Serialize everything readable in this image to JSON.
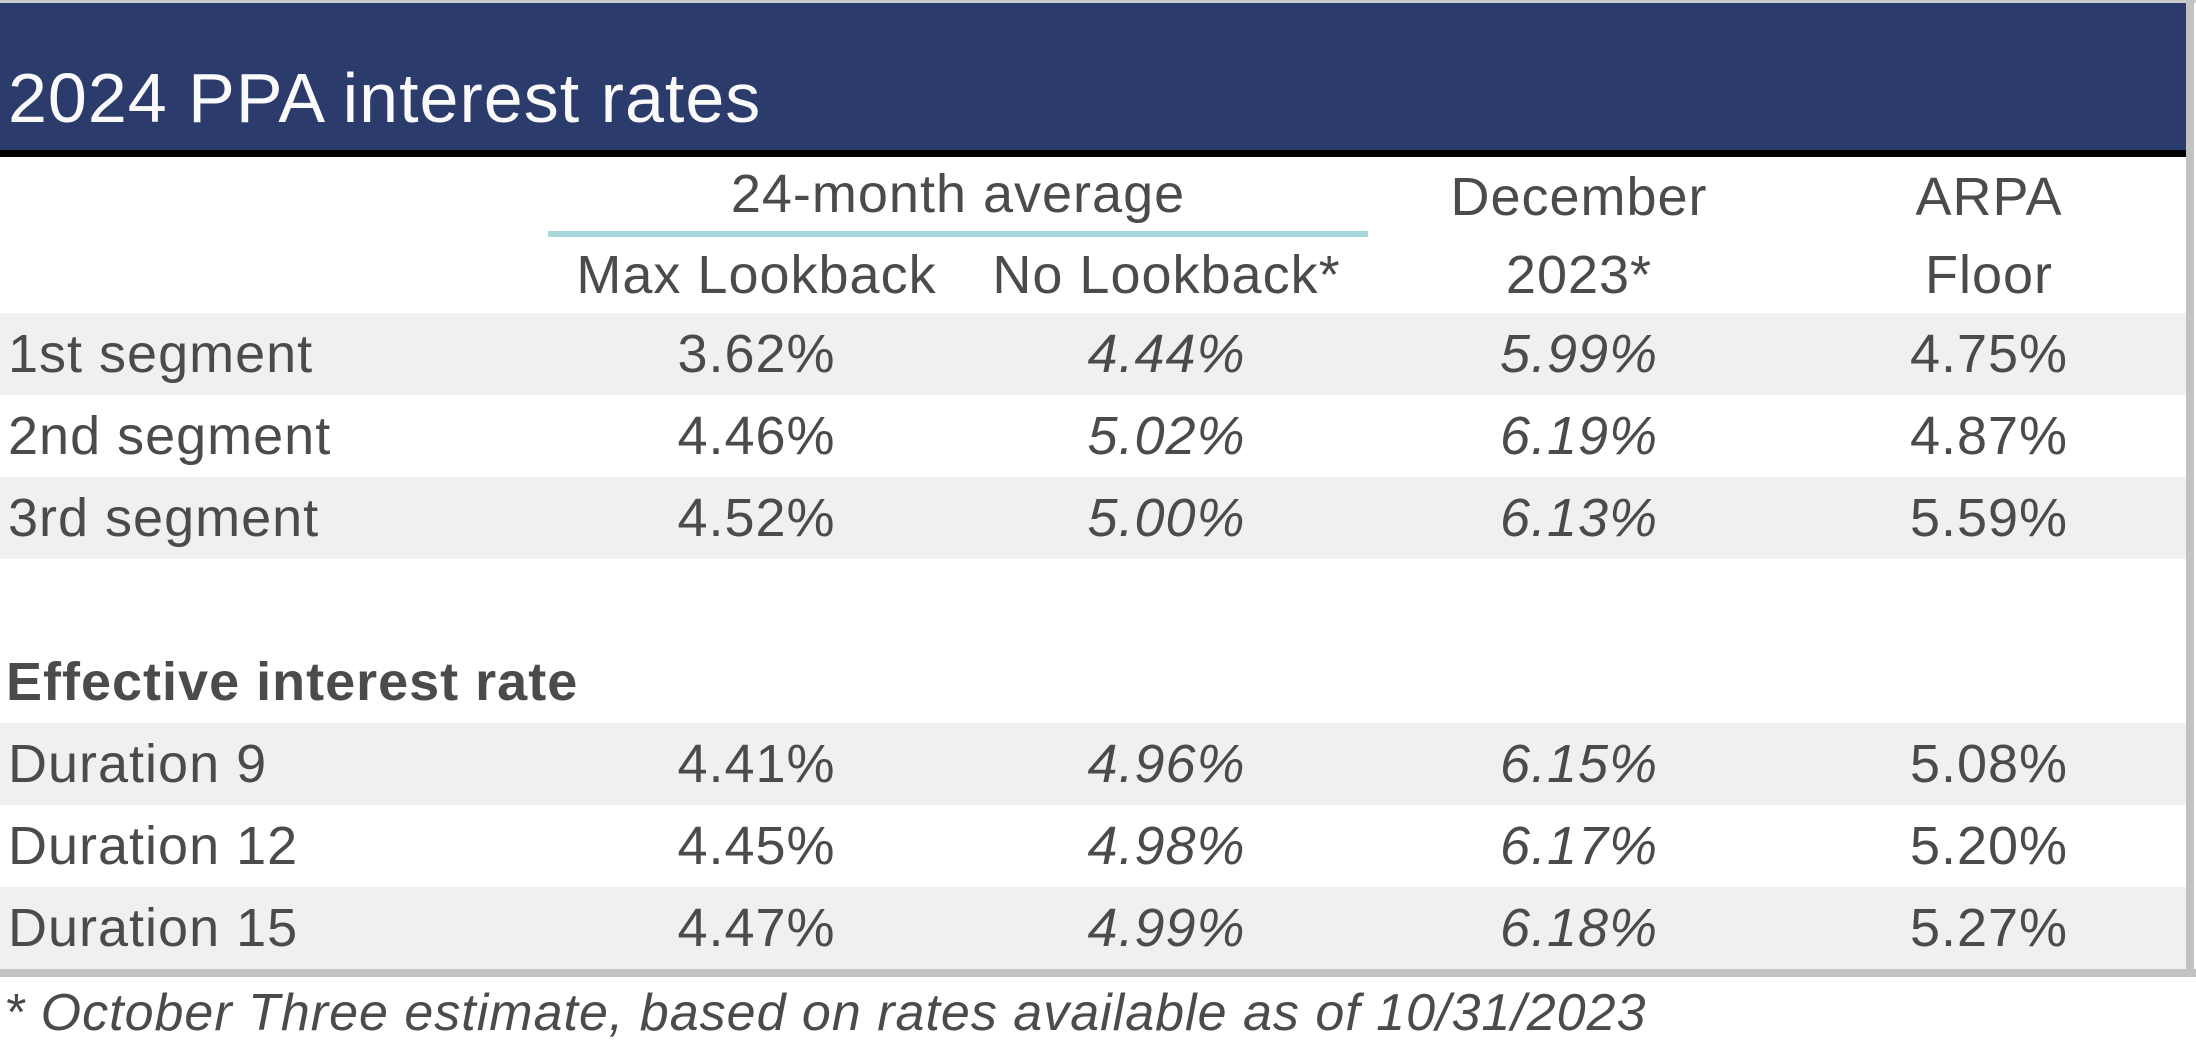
{
  "title": "2024 PPA interest rates",
  "table": {
    "header": {
      "group_label": "24-month average",
      "col_max_lookback": "Max Lookback",
      "col_no_lookback": "No Lookback*",
      "col_december_line1": "December",
      "col_december_line2": "2023*",
      "col_arpa_line1": "ARPA",
      "col_arpa_line2": "Floor"
    },
    "segment_rows": [
      {
        "label": "1st segment",
        "max_lookback": "3.62%",
        "no_lookback": "4.44%",
        "december_2023": "5.99%",
        "arpa_floor": "4.75%"
      },
      {
        "label": "2nd segment",
        "max_lookback": "4.46%",
        "no_lookback": "5.02%",
        "december_2023": "6.19%",
        "arpa_floor": "4.87%"
      },
      {
        "label": "3rd segment",
        "max_lookback": "4.52%",
        "no_lookback": "5.00%",
        "december_2023": "6.13%",
        "arpa_floor": "5.59%"
      }
    ],
    "section_heading": "Effective interest rate",
    "duration_rows": [
      {
        "label": "Duration 9",
        "max_lookback": "4.41%",
        "no_lookback": "4.96%",
        "december_2023": "6.15%",
        "arpa_floor": "5.08%"
      },
      {
        "label": "Duration 12",
        "max_lookback": "4.45%",
        "no_lookback": "4.98%",
        "december_2023": "6.17%",
        "arpa_floor": "5.20%"
      },
      {
        "label": "Duration 15",
        "max_lookback": "4.47%",
        "no_lookback": "4.99%",
        "december_2023": "6.18%",
        "arpa_floor": "5.27%"
      }
    ]
  },
  "footnote": "* October Three estimate, based on rates available as of 10/31/2023",
  "colors": {
    "header_navy": "#2B3B6C",
    "teal_underline": "#A9D8DC",
    "row_shade_gray": "#F0F0EF",
    "border_gray": "#C2C2C2",
    "text_gray": "#4B4B4B"
  },
  "chart_data": {
    "type": "table",
    "title": "2024 PPA interest rates",
    "columns": [
      "",
      "24-month average — Max Lookback",
      "24-month average — No Lookback*",
      "December 2023*",
      "ARPA Floor"
    ],
    "rows": [
      [
        "1st segment",
        3.62,
        4.44,
        5.99,
        4.75
      ],
      [
        "2nd segment",
        4.46,
        5.02,
        6.19,
        4.87
      ],
      [
        "3rd segment",
        4.52,
        5.0,
        6.13,
        5.59
      ],
      [
        "Effective interest rate",
        null,
        null,
        null,
        null
      ],
      [
        "Duration 9",
        4.41,
        4.96,
        6.15,
        5.08
      ],
      [
        "Duration 12",
        4.45,
        4.98,
        6.17,
        5.2
      ],
      [
        "Duration 15",
        4.47,
        4.99,
        6.18,
        5.27
      ]
    ],
    "units": "percent",
    "footnote": "* October Three estimate, based on rates available as of 10/31/2023"
  }
}
